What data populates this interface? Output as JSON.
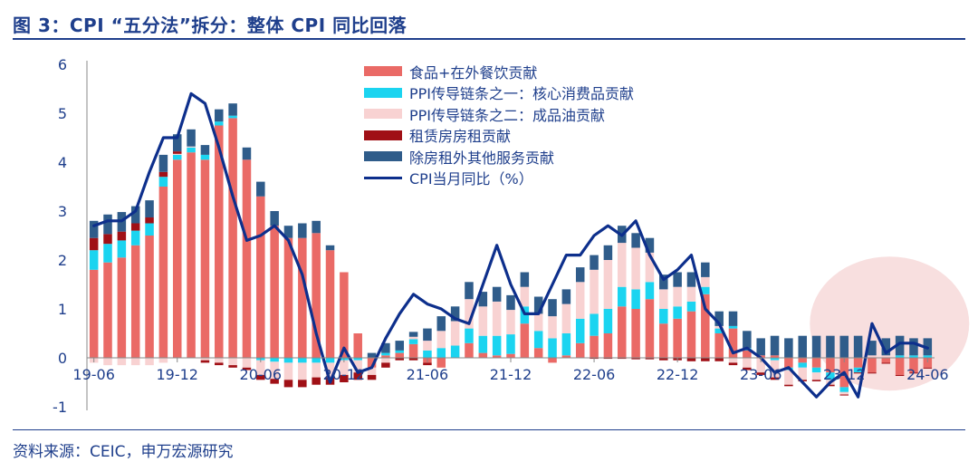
{
  "title": "图 3：CPI “五分法”拆分：整体 CPI 同比回落",
  "source": "资料来源：CEIC，申万宏源研究",
  "colors": {
    "food": "#ea6a66",
    "ppi_core": "#1bd4f0",
    "ppi_oil": "#f8d2d2",
    "rent": "#a01016",
    "services": "#2f5c8a",
    "cpi": "#0d2f8c",
    "axis_text": "#1f3f8c",
    "highlight": "#f6d4d4"
  },
  "chart_data": {
    "type": "bar",
    "stacked": true,
    "title": "CPI“五分法”拆分：整体CPI同比回落",
    "xlabel": "",
    "ylabel": "",
    "ylim": [
      -1,
      6
    ],
    "yticks": [
      "6",
      "5",
      "4",
      "3",
      "2",
      "1",
      "0",
      "-1"
    ],
    "xtick_labels": [
      "19-06",
      "19-12",
      "20-06",
      "20-12",
      "21-06",
      "21-12",
      "22-06",
      "22-12",
      "23-06",
      "23-12",
      "24-06"
    ],
    "xtick_index": [
      0,
      6,
      12,
      18,
      24,
      30,
      36,
      42,
      48,
      54,
      60
    ],
    "n_months": 61,
    "first_month": "2019-06",
    "last_month": "2024-06",
    "legend_position": "top-center",
    "highlight_note": "shaded ellipse over 2024 months",
    "series": [
      {
        "name": "食品+在外餐饮贡献",
        "color_key": "food",
        "values": [
          1.8,
          1.95,
          2.05,
          2.3,
          2.5,
          3.5,
          4.05,
          4.2,
          4.05,
          4.75,
          4.9,
          4.05,
          3.3,
          2.7,
          2.45,
          2.45,
          2.55,
          2.2,
          1.75,
          0.5,
          -0.2,
          0.05,
          0.1,
          0.28,
          -0.1,
          -0.2,
          0,
          0.3,
          0.1,
          0.05,
          0.08,
          0.7,
          0.2,
          -0.1,
          0.05,
          0.3,
          0.45,
          0.5,
          1.05,
          1.0,
          1.2,
          0.7,
          0.8,
          0.95,
          1.3,
          0.5,
          0.6,
          0.15,
          0.05,
          0.05,
          -0.2,
          -0.1,
          -0.2,
          -0.3,
          -0.6,
          -0.2,
          -0.3,
          -0.1,
          -0.35,
          -0.3,
          -0.2
        ]
      },
      {
        "name": "PPI传导链条之一：核心消费品贡献",
        "color_key": "ppi_core",
        "values": [
          0.4,
          0.38,
          0.35,
          0.3,
          0.25,
          0.2,
          0.1,
          0.1,
          0.1,
          0.08,
          0.05,
          0.0,
          -0.05,
          -0.08,
          -0.1,
          -0.1,
          -0.1,
          -0.1,
          -0.05,
          -0.05,
          0,
          0.05,
          0.05,
          0.1,
          0.15,
          0.2,
          0.25,
          0.3,
          0.35,
          0.4,
          0.4,
          0.35,
          0.35,
          0.4,
          0.45,
          0.5,
          0.45,
          0.5,
          0.4,
          0.4,
          0.35,
          0.3,
          0.25,
          0.2,
          0.15,
          0.1,
          0.05,
          0.05,
          0.0,
          -0.05,
          -0.05,
          -0.1,
          -0.1,
          -0.15,
          -0.1,
          -0.1,
          0.0,
          0.0,
          0.05,
          0.05,
          0.05
        ]
      },
      {
        "name": "PPI传导链条之二：成品油贡献",
        "color_key": "ppi_oil",
        "values": [
          -0.1,
          -0.15,
          -0.15,
          -0.15,
          -0.15,
          -0.1,
          0.02,
          0.02,
          -0.05,
          -0.1,
          -0.15,
          -0.2,
          -0.3,
          -0.35,
          -0.35,
          -0.35,
          -0.3,
          -0.3,
          -0.3,
          -0.25,
          -0.15,
          -0.1,
          0.0,
          0.05,
          0.2,
          0.35,
          0.5,
          0.6,
          0.6,
          0.7,
          0.5,
          0.4,
          0.35,
          0.45,
          0.6,
          0.75,
          0.9,
          1.0,
          0.9,
          0.85,
          0.6,
          0.4,
          0.4,
          0.3,
          0.2,
          0.05,
          -0.1,
          -0.2,
          -0.3,
          -0.35,
          -0.3,
          -0.25,
          -0.15,
          -0.1,
          -0.05,
          0.0,
          0.05,
          0.05,
          0.0,
          0.0,
          0.0
        ]
      },
      {
        "name": "租赁房房租贡献",
        "color_key": "rent",
        "values": [
          0.25,
          0.2,
          0.18,
          0.15,
          0.12,
          0.1,
          0.05,
          0.0,
          -0.05,
          -0.05,
          -0.05,
          -0.05,
          -0.1,
          -0.1,
          -0.15,
          -0.15,
          -0.15,
          -0.15,
          -0.15,
          -0.15,
          -0.1,
          -0.1,
          -0.05,
          -0.05,
          -0.05,
          0.0,
          0.0,
          0.0,
          0.0,
          0.0,
          0.0,
          0.0,
          0.0,
          0.0,
          0.0,
          0.0,
          -0.02,
          -0.02,
          -0.02,
          -0.03,
          -0.03,
          -0.05,
          -0.05,
          -0.07,
          -0.07,
          -0.07,
          -0.05,
          -0.05,
          -0.05,
          -0.05,
          -0.03,
          -0.03,
          -0.03,
          -0.03,
          -0.02,
          -0.02,
          -0.02,
          -0.02,
          -0.02,
          -0.02,
          -0.02
        ]
      },
      {
        "name": "除房租外其他服务贡献",
        "color_key": "services",
        "values": [
          0.35,
          0.4,
          0.4,
          0.35,
          0.35,
          0.35,
          0.35,
          0.35,
          0.2,
          0.25,
          0.25,
          0.25,
          0.3,
          0.3,
          0.25,
          0.3,
          0.25,
          0.1,
          0.0,
          0.0,
          0.1,
          0.2,
          0.2,
          0.1,
          0.25,
          0.3,
          0.3,
          0.35,
          0.3,
          0.3,
          0.3,
          0.3,
          0.35,
          0.35,
          0.3,
          0.3,
          0.3,
          0.3,
          0.35,
          0.3,
          0.3,
          0.3,
          0.3,
          0.3,
          0.3,
          0.3,
          0.3,
          0.35,
          0.35,
          0.4,
          0.4,
          0.45,
          0.45,
          0.45,
          0.45,
          0.45,
          0.3,
          0.35,
          0.4,
          0.35,
          0.35
        ]
      },
      {
        "name": "CPI当月同比（%）",
        "color_key": "cpi",
        "kind": "line",
        "values": [
          2.7,
          2.8,
          2.8,
          3.0,
          3.8,
          4.5,
          4.5,
          5.4,
          5.2,
          4.3,
          3.3,
          2.4,
          2.5,
          2.7,
          2.4,
          1.7,
          0.5,
          -0.5,
          0.2,
          -0.3,
          -0.2,
          0.4,
          0.9,
          1.3,
          1.1,
          1.0,
          0.8,
          0.7,
          1.5,
          2.3,
          1.5,
          0.9,
          0.9,
          1.5,
          2.1,
          2.1,
          2.5,
          2.7,
          2.5,
          2.8,
          2.1,
          1.6,
          1.8,
          2.1,
          1.0,
          0.7,
          0.1,
          0.2,
          0.0,
          -0.3,
          -0.2,
          -0.5,
          -0.8,
          -0.5,
          -0.3,
          -0.8,
          0.7,
          0.1,
          0.3,
          0.3,
          0.2
        ]
      }
    ]
  }
}
